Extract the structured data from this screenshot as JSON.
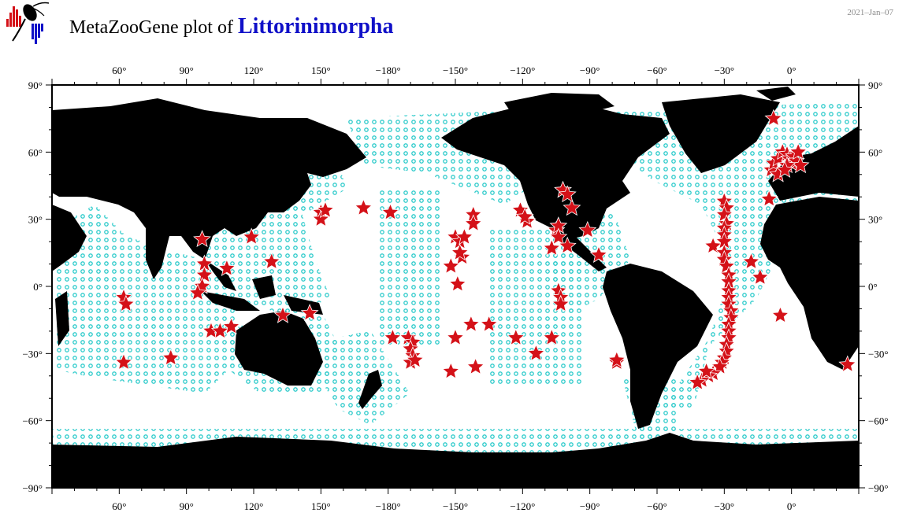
{
  "header": {
    "title_prefix": "MetaZooGene plot of",
    "taxon": "Littorinimorpha",
    "date": "2021–Jan–07"
  },
  "colors": {
    "land": "#000000",
    "ocean": "#ffffff",
    "sample_marker": "#22c8c8",
    "occurrence_marker": "#d41118",
    "title_taxon": "#1010c8"
  },
  "icons": {
    "logo": "copepod-logo-icon",
    "occurrence": "red-star-icon",
    "sample": "cyan-circle-icon"
  },
  "map": {
    "projection": "equirectangular",
    "lon_range": [
      30,
      390
    ],
    "lat_range": [
      -90,
      90
    ],
    "top_ticks": [
      "60°",
      "90°",
      "120°",
      "150°",
      "−180°",
      "−150°",
      "−120°",
      "−90°",
      "−60°",
      "−30°",
      "0°"
    ],
    "bottom_ticks": [
      "60°",
      "90°",
      "120°",
      "150°",
      "−180°",
      "−150°",
      "−120°",
      "−90°",
      "−60°",
      "−30°",
      "0°"
    ],
    "left_ticks": [
      "90°",
      "60°",
      "30°",
      "0°",
      "−30°",
      "−60°",
      "−90°"
    ],
    "right_ticks": [
      "90°",
      "60°",
      "30°",
      "0°",
      "−30°",
      "−60°",
      "−90°"
    ],
    "tick_lons": [
      60,
      90,
      120,
      150,
      180,
      210,
      240,
      270,
      300,
      330,
      360
    ],
    "tick_lats": [
      90,
      60,
      30,
      0,
      -30,
      -60,
      -90
    ],
    "occurrences": [
      [
        62,
        -5
      ],
      [
        63,
        -8
      ],
      [
        62,
        -34
      ],
      [
        83,
        -32
      ],
      [
        97,
        21
      ],
      [
        98,
        10
      ],
      [
        98,
        5
      ],
      [
        97,
        0
      ],
      [
        95,
        -3
      ],
      [
        108,
        8
      ],
      [
        101,
        -20
      ],
      [
        105,
        -20
      ],
      [
        110,
        -18
      ],
      [
        119,
        22
      ],
      [
        128,
        11
      ],
      [
        133,
        -13
      ],
      [
        145,
        -12
      ],
      [
        150,
        33
      ],
      [
        150,
        30
      ],
      [
        152,
        34
      ],
      [
        169,
        35
      ],
      [
        181,
        33
      ],
      [
        218,
        32
      ],
      [
        218,
        28
      ],
      [
        210,
        22
      ],
      [
        212,
        20
      ],
      [
        214,
        22
      ],
      [
        213,
        13
      ],
      [
        212,
        15
      ],
      [
        208,
        9
      ],
      [
        211,
        1
      ],
      [
        217,
        -17
      ],
      [
        210,
        -23
      ],
      [
        208,
        -38
      ],
      [
        219,
        -36
      ],
      [
        225,
        -17
      ],
      [
        189,
        -23
      ],
      [
        191,
        -25
      ],
      [
        190,
        -28
      ],
      [
        191,
        -31
      ],
      [
        190,
        -34
      ],
      [
        192,
        -33
      ],
      [
        182,
        -23
      ],
      [
        239,
        34
      ],
      [
        242,
        29
      ],
      [
        241,
        31
      ],
      [
        237,
        -23
      ],
      [
        246,
        -30
      ],
      [
        253,
        -23
      ],
      [
        253,
        17
      ],
      [
        258,
        43
      ],
      [
        262,
        35
      ],
      [
        260,
        41
      ],
      [
        255,
        25
      ],
      [
        256,
        27
      ],
      [
        256,
        22
      ],
      [
        256,
        -2
      ],
      [
        257,
        -5
      ],
      [
        257,
        -8
      ],
      [
        260,
        18
      ],
      [
        269,
        25
      ],
      [
        274,
        14
      ],
      [
        282,
        -34
      ],
      [
        282,
        -33
      ],
      [
        325,
        18
      ],
      [
        330,
        38
      ],
      [
        331,
        35
      ],
      [
        330,
        32
      ],
      [
        331,
        28
      ],
      [
        330,
        26
      ],
      [
        330,
        23
      ],
      [
        330,
        20
      ],
      [
        330,
        15
      ],
      [
        330,
        12
      ],
      [
        331,
        9
      ],
      [
        332,
        5
      ],
      [
        332,
        2
      ],
      [
        332,
        -2
      ],
      [
        332,
        -5
      ],
      [
        332,
        -8
      ],
      [
        333,
        -11
      ],
      [
        333,
        -14
      ],
      [
        332,
        -17
      ],
      [
        332,
        -20
      ],
      [
        332,
        -23
      ],
      [
        331,
        -26
      ],
      [
        331,
        -29
      ],
      [
        330,
        -32
      ],
      [
        329,
        -34
      ],
      [
        328,
        -36
      ],
      [
        325,
        -39
      ],
      [
        323,
        -40
      ],
      [
        320,
        -42
      ],
      [
        318,
        -43
      ],
      [
        322,
        -38
      ],
      [
        342,
        11
      ],
      [
        346,
        4
      ],
      [
        355,
        -13
      ],
      [
        352,
        75
      ],
      [
        350,
        39
      ],
      [
        351,
        52
      ],
      [
        352,
        55
      ],
      [
        354,
        57
      ],
      [
        356,
        60
      ],
      [
        358,
        59
      ],
      [
        359,
        57
      ],
      [
        360,
        55
      ],
      [
        361,
        58
      ],
      [
        362,
        56
      ],
      [
        364,
        54
      ],
      [
        363,
        60
      ],
      [
        358,
        54
      ],
      [
        354,
        50
      ],
      [
        357,
        52
      ],
      [
        385,
        -35
      ]
    ]
  }
}
